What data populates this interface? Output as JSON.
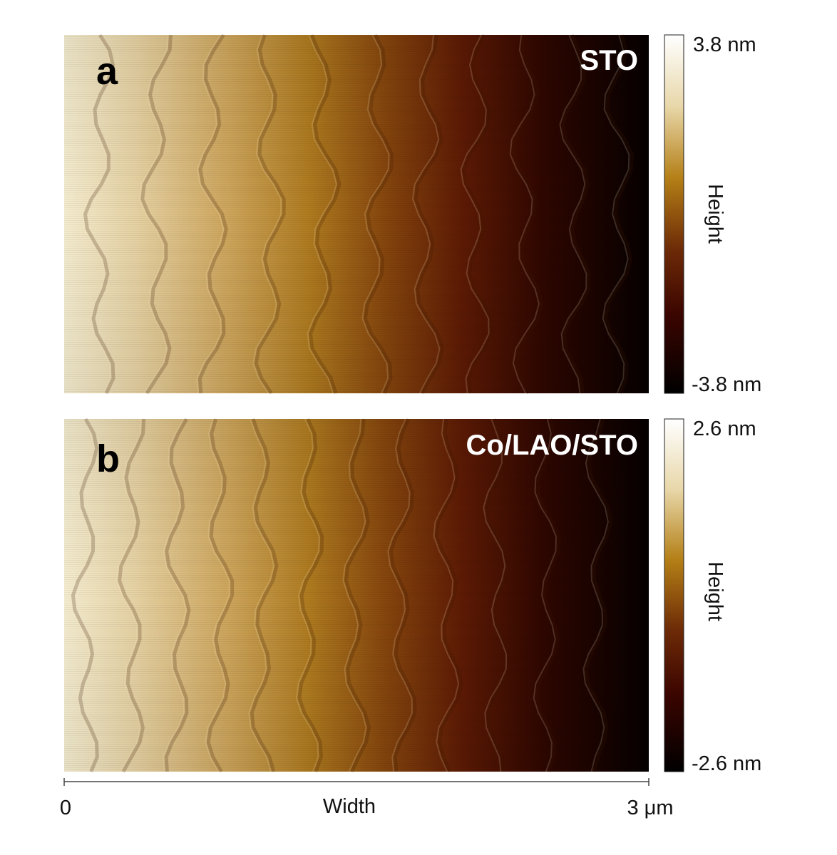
{
  "panels": [
    {
      "letter": "a",
      "sample": "STO",
      "colorbar": {
        "max_label": "3.8 nm",
        "min_label": "-3.8 nm",
        "axis_label": "Height"
      }
    },
    {
      "letter": "b",
      "sample": "Co/LAO/STO",
      "colorbar": {
        "max_label": "2.6 nm",
        "min_label": "-2.6 nm",
        "axis_label": "Height"
      }
    }
  ],
  "x_axis": {
    "label": "Width",
    "start_label": "0",
    "end_label": "3 μm"
  },
  "colors": {
    "light": "#f6f0dc",
    "mid": "#a9750c",
    "dark_red": "#4a0b00",
    "dark": "#000000"
  }
}
